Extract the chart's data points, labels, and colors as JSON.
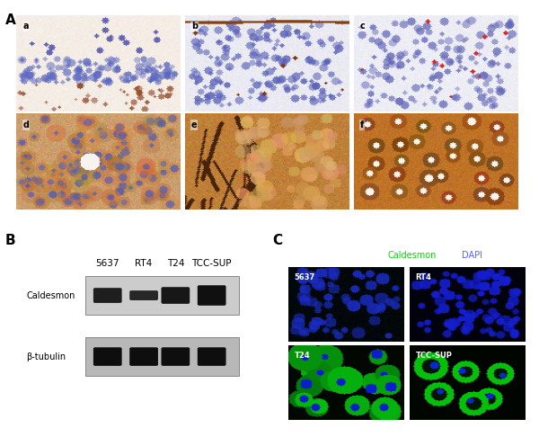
{
  "background_color": "#ffffff",
  "panel_A_label": "A",
  "panel_B_label": "B",
  "panel_C_label": "C",
  "panel_A_subpanels": [
    "a",
    "b",
    "c",
    "d",
    "e",
    "f"
  ],
  "western_blot_labels_top": [
    "5637",
    "RT4",
    "T24",
    "TCC-SUP"
  ],
  "western_blot_row1_label": "Caldesmon",
  "western_blot_row2_label": "β-tubulin",
  "fluorescence_legend_caldesmon": "Caldesmon",
  "fluorescence_legend_dapi": "DAPI",
  "fluorescence_color_caldesmon": "#00dd00",
  "fluorescence_color_dapi": "#5566ff",
  "cell_line_labels": [
    "5637",
    "RT4",
    "T24",
    "TCC-SUP"
  ]
}
